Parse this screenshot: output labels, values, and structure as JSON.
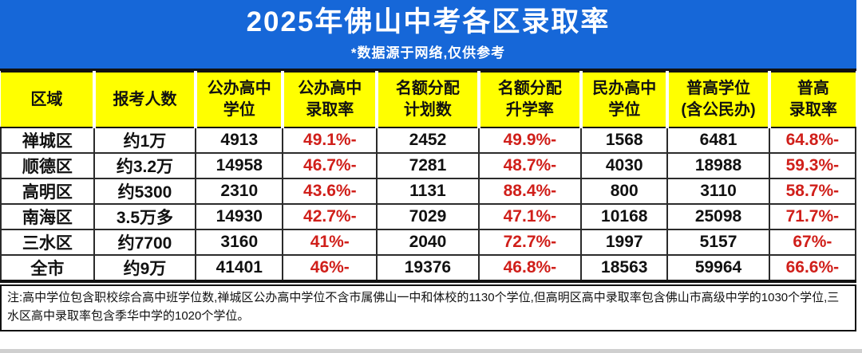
{
  "banner": {
    "title": "2025年佛山中考各区录取率",
    "subtitle": "*数据源于网络,仅供参考"
  },
  "table": {
    "headers": [
      "区域",
      "报考人数",
      "公办高中\n学位",
      "公办高中\n录取率",
      "名额分配\n计划数",
      "名额分配\n升学率",
      "民办高中\n学位",
      "普高学位\n(含公民办)",
      "普高\n录取率"
    ],
    "red_columns": [
      3,
      5,
      8
    ],
    "rows": [
      {
        "cells": [
          "禅城区",
          "约1万",
          "4913",
          "49.1%-",
          "2452",
          "49.9%-",
          "1568",
          "6481",
          "64.8%-"
        ]
      },
      {
        "cells": [
          "顺德区",
          "约3.2万",
          "14958",
          "46.7%-",
          "7281",
          "48.7%-",
          "4030",
          "18988",
          "59.3%-"
        ]
      },
      {
        "cells": [
          "高明区",
          "约5300",
          "2310",
          "43.6%-",
          "1131",
          "88.4%-",
          "800",
          "3110",
          "58.7%-"
        ]
      },
      {
        "cells": [
          "南海区",
          "3.5万多",
          "14930",
          "42.7%-",
          "7029",
          "47.1%-",
          "10168",
          "25098",
          "71.7%-"
        ]
      },
      {
        "cells": [
          "三水区",
          "约7700",
          "3160",
          "41%-",
          "2040",
          "72.7%-",
          "1997",
          "5157",
          "67%-"
        ]
      },
      {
        "cells": [
          "全市",
          "约9万",
          "41401",
          "46%-",
          "19376",
          "46.8%-",
          "18563",
          "59964",
          "66.6%-"
        ]
      }
    ]
  },
  "note": {
    "text": "注:高中学位包含职校综合高中班学位数,禅城区公办高中学位不含市属佛山一中和体校的1130个学位,但高明区高中录取率包含佛山市高级中学的1030个学位,三水区高中录取率包含季华中学的1020个学位。"
  },
  "colors": {
    "banner_blue": "#1667d8",
    "header_yellow": "#ffff00",
    "percent_red": "#d01f1a",
    "text_black": "#111111"
  },
  "chart_data": {
    "type": "table",
    "title": "2025年佛山中考各区录取率",
    "subtitle": "*数据源于网络,仅供参考",
    "columns": [
      "区域",
      "报考人数",
      "公办高中学位",
      "公办高中录取率",
      "名额分配计划数",
      "名额分配升学率",
      "民办高中学位",
      "普高学位(含公民办)",
      "普高录取率"
    ],
    "rows": [
      [
        "禅城区",
        "约1万",
        4913,
        "49.1%-",
        2452,
        "49.9%-",
        1568,
        6481,
        "64.8%-"
      ],
      [
        "顺德区",
        "约3.2万",
        14958,
        "46.7%-",
        7281,
        "48.7%-",
        4030,
        18988,
        "59.3%-"
      ],
      [
        "高明区",
        "约5300",
        2310,
        "43.6%-",
        1131,
        "88.4%-",
        800,
        3110,
        "58.7%-"
      ],
      [
        "南海区",
        "3.5万多",
        14930,
        "42.7%-",
        7029,
        "47.1%-",
        10168,
        25098,
        "71.7%-"
      ],
      [
        "三水区",
        "约7700",
        3160,
        "41%-",
        2040,
        "72.7%-",
        1997,
        5157,
        "67%-"
      ],
      [
        "全市",
        "约9万",
        41401,
        "46%-",
        19376,
        "46.8%-",
        18563,
        59964,
        "66.6%-"
      ]
    ],
    "note": "注:高中学位包含职校综合高中班学位数,禅城区公办高中学位不含市属佛山一中和体校的1130个学位,但高明区高中录取率包含佛山市高级中学的1030个学位,三水区高中录取率包含季华中学的1020个学位。"
  }
}
